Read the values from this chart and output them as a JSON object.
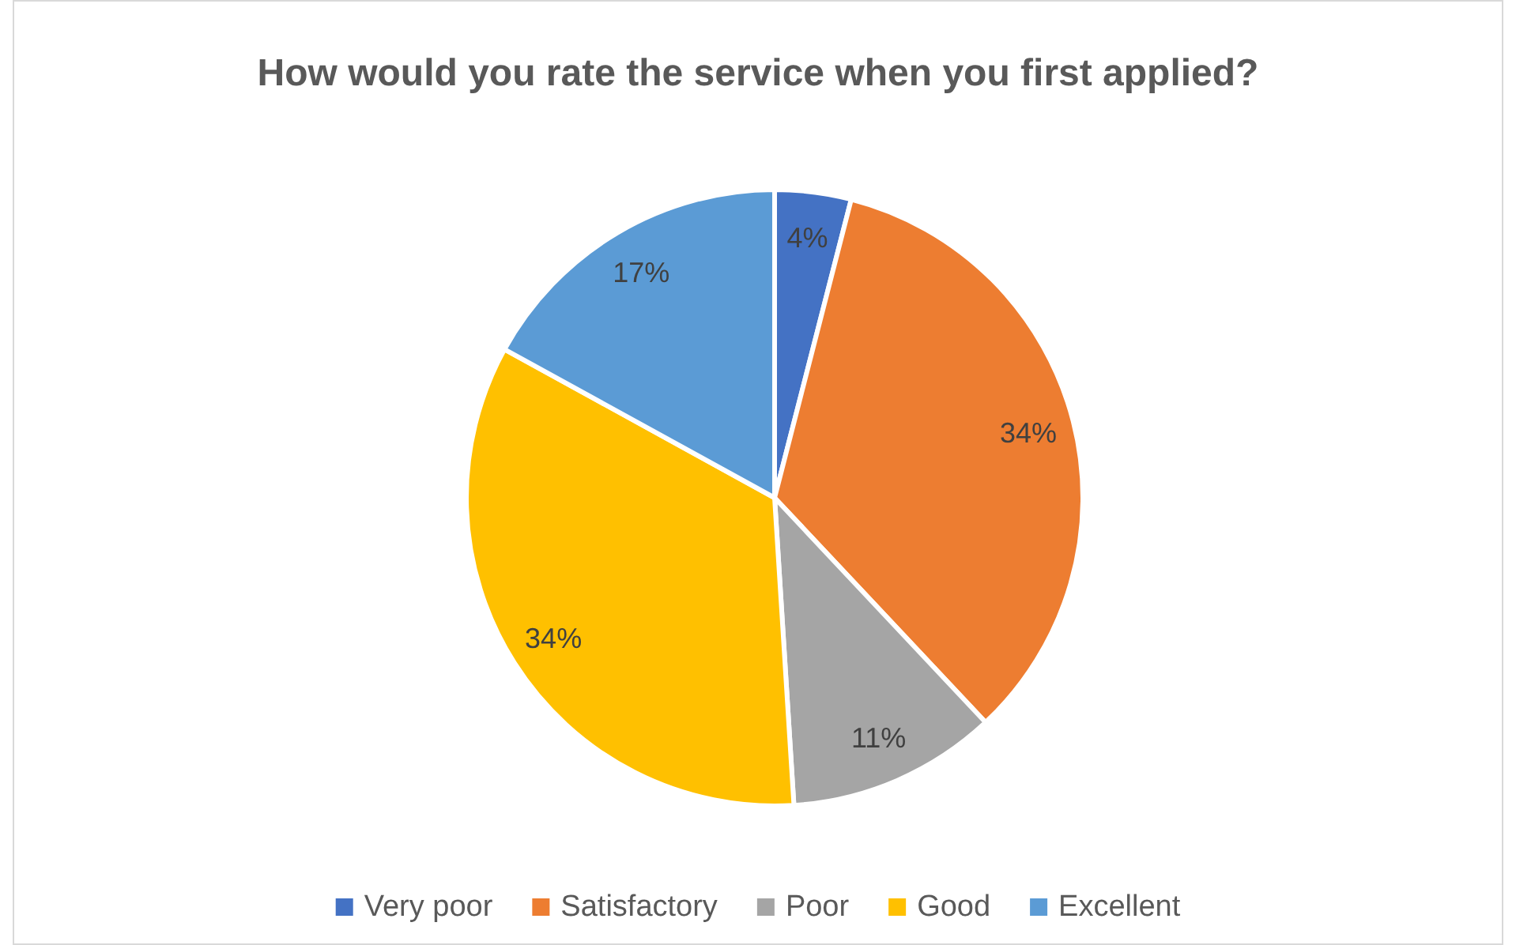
{
  "chart_data": {
    "type": "pie",
    "title": "How would you rate the service when you first applied?",
    "categories": [
      "Very poor",
      "Satisfactory",
      "Poor",
      "Good",
      "Excellent"
    ],
    "values": [
      4,
      34,
      11,
      34,
      17
    ],
    "colors": [
      "#4472c4",
      "#ed7d31",
      "#a5a5a5",
      "#ffc000",
      "#5b9bd5"
    ],
    "value_labels": [
      "4%",
      "34%",
      "11%",
      "34%",
      "17%"
    ],
    "legend": "bottom"
  }
}
